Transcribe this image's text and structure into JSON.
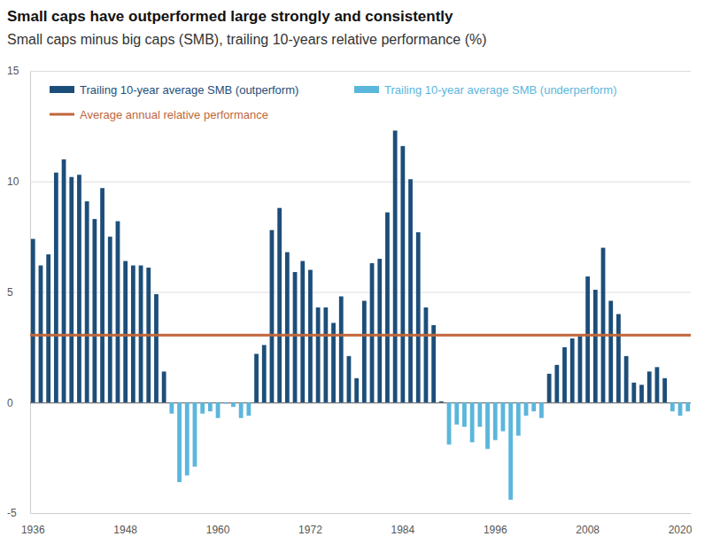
{
  "chart_data": {
    "type": "bar",
    "title": "Small caps have outperformed large strongly and consistently",
    "subtitle": "Small caps minus big caps (SMB), trailing 10-years relative performance (%)",
    "categories": [
      "1936",
      null,
      null,
      null,
      null,
      null,
      null,
      null,
      null,
      null,
      null,
      null,
      "1948",
      null,
      null,
      null,
      null,
      null,
      null,
      null,
      null,
      null,
      null,
      null,
      "1960",
      null,
      null,
      null,
      null,
      null,
      null,
      null,
      null,
      null,
      null,
      null,
      "1972",
      null,
      null,
      null,
      null,
      null,
      null,
      null,
      null,
      null,
      null,
      null,
      "1984",
      null,
      null,
      null,
      null,
      null,
      null,
      null,
      null,
      null,
      null,
      null,
      "1996",
      null,
      null,
      null,
      null,
      null,
      null,
      null,
      null,
      null,
      null,
      null,
      "2008",
      null,
      null,
      null,
      null,
      null,
      null,
      null,
      null,
      null,
      null,
      null,
      "2020",
      null
    ],
    "series": [
      {
        "name": "Trailing 10-year average SMB (outperform)",
        "color": "#1d4e7a",
        "values": [
          7.4,
          6.2,
          6.7,
          10.4,
          11.0,
          10.2,
          10.3,
          9.1,
          8.3,
          9.7,
          7.5,
          8.2,
          6.4,
          6.2,
          6.2,
          6.1,
          4.9,
          1.4,
          null,
          null,
          null,
          null,
          null,
          null,
          null,
          null,
          null,
          null,
          null,
          2.2,
          2.6,
          7.8,
          8.8,
          6.8,
          5.9,
          6.4,
          6.0,
          4.3,
          4.3,
          3.6,
          4.8,
          2.1,
          1.1,
          4.6,
          6.3,
          6.5,
          8.6,
          12.3,
          11.6,
          10.1,
          7.7,
          4.3,
          3.5,
          0.05,
          null,
          null,
          null,
          null,
          null,
          null,
          null,
          null,
          null,
          null,
          null,
          null,
          null,
          1.3,
          1.7,
          2.5,
          2.9,
          3.0,
          5.7,
          5.1,
          7.0,
          4.6,
          4.0,
          2.1,
          0.9,
          0.8,
          1.4,
          1.6,
          1.1,
          null,
          null,
          null
        ]
      },
      {
        "name": "Trailing 10-year average SMB (underperform)",
        "color": "#5bb6dc",
        "values": [
          null,
          null,
          null,
          null,
          null,
          null,
          null,
          null,
          null,
          null,
          null,
          null,
          null,
          null,
          null,
          null,
          null,
          null,
          -0.5,
          -3.6,
          -3.3,
          -2.9,
          -0.5,
          -0.4,
          -0.7,
          -0.05,
          -0.2,
          -0.7,
          -0.6,
          null,
          null,
          null,
          null,
          null,
          null,
          null,
          null,
          null,
          null,
          null,
          null,
          null,
          null,
          null,
          null,
          null,
          null,
          null,
          null,
          null,
          null,
          null,
          null,
          null,
          -1.9,
          -1.0,
          -1.1,
          -1.8,
          -1.1,
          -2.1,
          -1.7,
          -1.3,
          -4.4,
          -1.5,
          -0.6,
          -0.4,
          -0.7,
          null,
          null,
          null,
          null,
          null,
          null,
          null,
          null,
          null,
          null,
          null,
          null,
          null,
          null,
          null,
          null,
          -0.4,
          -0.6,
          -0.4
        ]
      }
    ],
    "reference_line": {
      "name": "Average annual relative performance",
      "value": 3.05,
      "color": "#c0663a"
    },
    "ylim": [
      -5,
      15
    ],
    "yticks": [
      -5,
      0,
      5,
      10,
      15
    ],
    "grid": true,
    "legend": "top"
  }
}
